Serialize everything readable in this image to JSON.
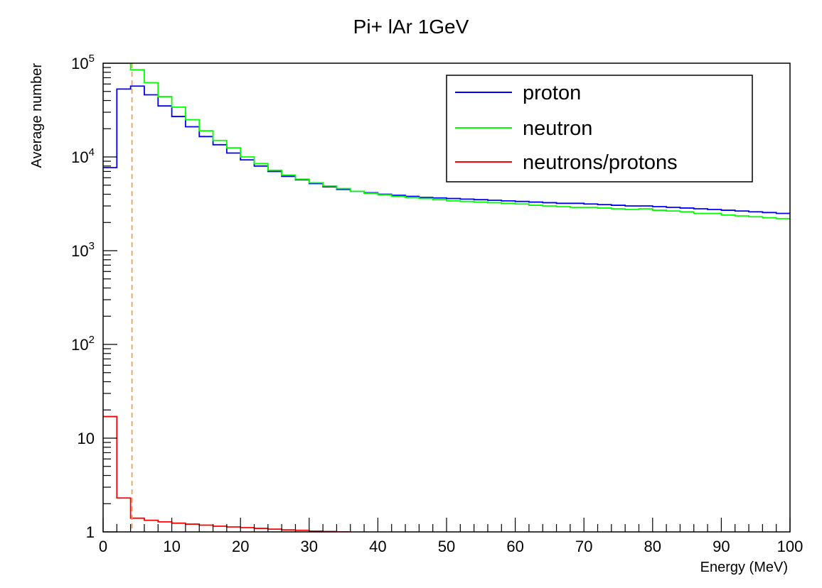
{
  "chart_data": {
    "type": "line",
    "title": "Pi+ lAr 1GeV",
    "xlabel": "Energy (MeV)",
    "ylabel": "Average number",
    "xlim": [
      0,
      100
    ],
    "ylim": [
      1,
      100000
    ],
    "yscale": "log",
    "grid": false,
    "legend_position": "top-right",
    "x_ticks": [
      0,
      10,
      20,
      30,
      40,
      50,
      60,
      70,
      80,
      90,
      100
    ],
    "y_ticks": [
      {
        "value": 1,
        "base": "1",
        "exp": ""
      },
      {
        "value": 10,
        "base": "10",
        "exp": ""
      },
      {
        "value": 100,
        "base": "10",
        "exp": "2"
      },
      {
        "value": 1000,
        "base": "10",
        "exp": "3"
      },
      {
        "value": 10000,
        "base": "10",
        "exp": "4"
      },
      {
        "value": 100000,
        "base": "10",
        "exp": "5"
      }
    ],
    "bin_edges": [
      0,
      2,
      4,
      6,
      8,
      10,
      12,
      14,
      16,
      18,
      20,
      22,
      24,
      26,
      28,
      30,
      32,
      34,
      36,
      38,
      40,
      42,
      44,
      46,
      48,
      50,
      52,
      54,
      56,
      58,
      60,
      62,
      64,
      66,
      68,
      70,
      72,
      74,
      76,
      78,
      80,
      82,
      84,
      86,
      88,
      90,
      92,
      94,
      96,
      98,
      100
    ],
    "series": [
      {
        "name": "proton",
        "color": "#0000ff",
        "values": [
          7700,
          53000,
          57000,
          46000,
          35000,
          27000,
          21000,
          16500,
          13500,
          11000,
          9300,
          8000,
          7000,
          6200,
          5700,
          5200,
          4800,
          4500,
          4300,
          4150,
          4000,
          3900,
          3800,
          3700,
          3650,
          3600,
          3550,
          3500,
          3450,
          3400,
          3350,
          3300,
          3250,
          3200,
          3200,
          3150,
          3100,
          3050,
          3000,
          3000,
          2950,
          2900,
          2850,
          2800,
          2750,
          2700,
          2650,
          2600,
          2550,
          2500
        ]
      },
      {
        "name": "neutron",
        "color": "#00ff00",
        "values": [
          100000,
          100000,
          85000,
          62000,
          44000,
          34000,
          25000,
          19000,
          15000,
          12500,
          10000,
          8500,
          7200,
          6400,
          5800,
          5300,
          4900,
          4600,
          4300,
          4100,
          3950,
          3800,
          3700,
          3600,
          3500,
          3400,
          3350,
          3300,
          3250,
          3200,
          3150,
          3050,
          3000,
          2950,
          2900,
          2900,
          2850,
          2800,
          2750,
          2800,
          2700,
          2650,
          2600,
          2500,
          2500,
          2400,
          2350,
          2300,
          2250,
          2200
        ]
      },
      {
        "name": "neutrons/protons",
        "color": "#ff0000",
        "values": [
          17,
          2.3,
          1.4,
          1.33,
          1.28,
          1.24,
          1.21,
          1.18,
          1.15,
          1.13,
          1.11,
          1.09,
          1.07,
          1.05,
          1.04,
          1.02,
          1.01,
          1.0
        ]
      }
    ],
    "vertical_line": {
      "x": 4.2,
      "color": "#f0a050"
    }
  }
}
